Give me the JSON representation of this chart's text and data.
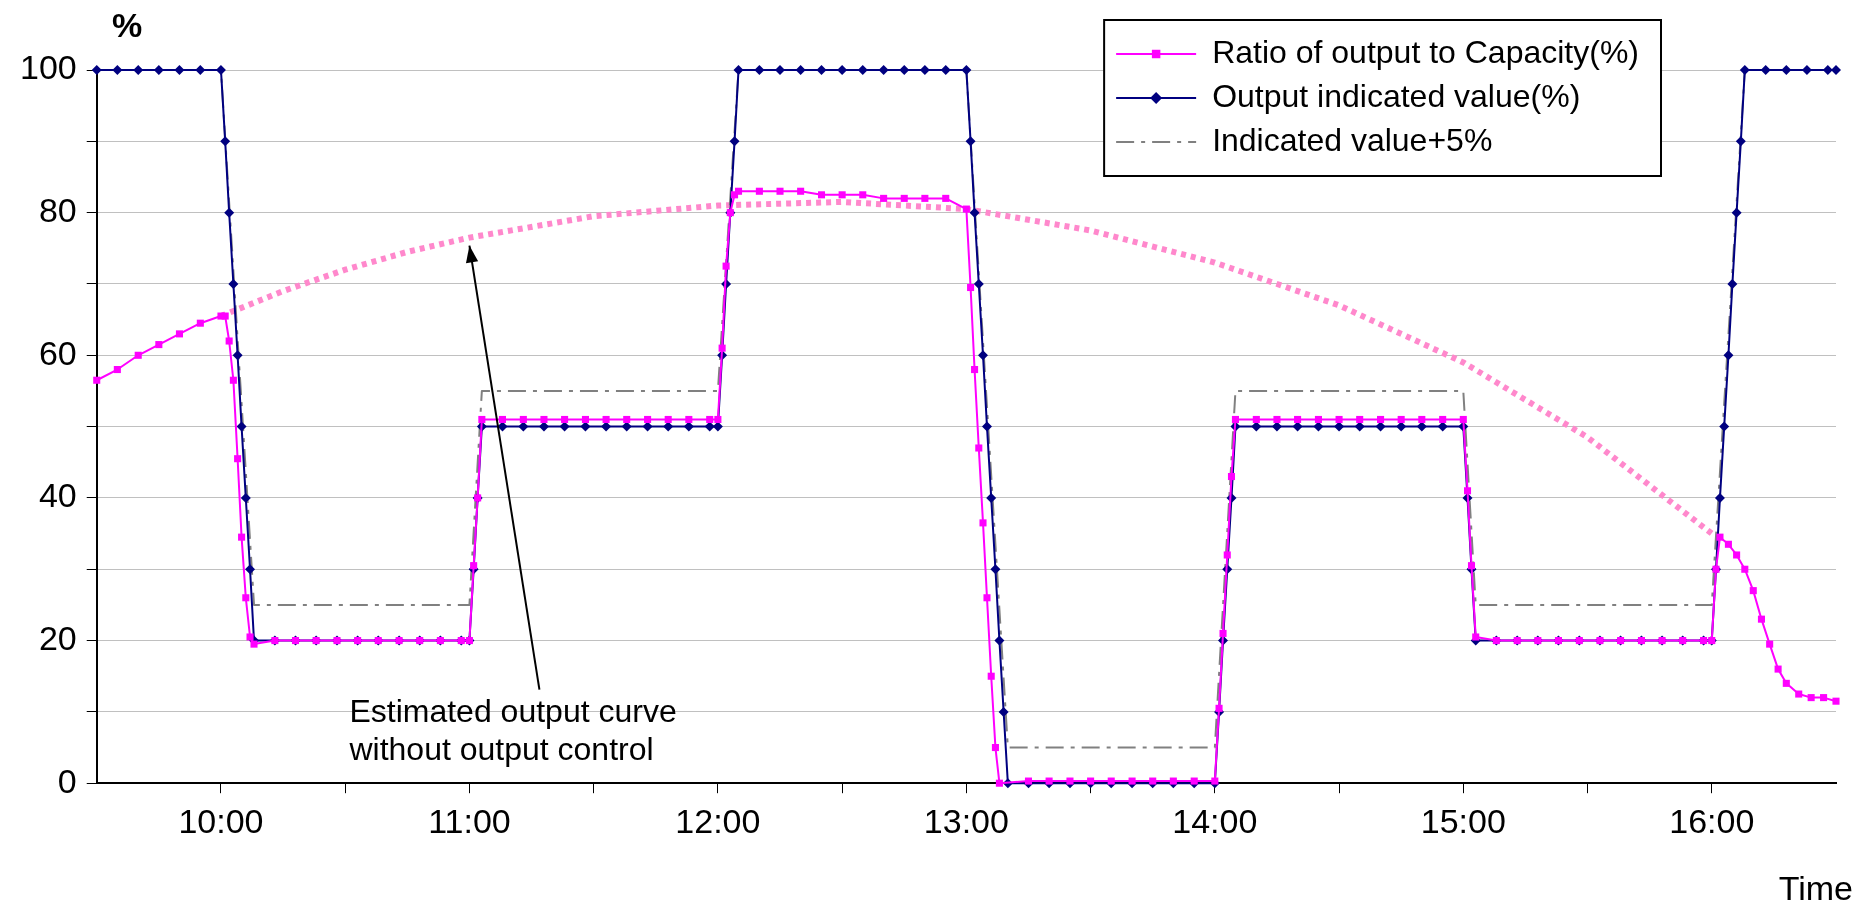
{
  "chart_data": {
    "type": "line",
    "xlabel": "Time",
    "ylabel": "%",
    "xlim": [
      9.5,
      16.5
    ],
    "xticks": [
      {
        "value": 10,
        "label": "10:00"
      },
      {
        "value": 10.5,
        "label": null
      },
      {
        "value": 11,
        "label": "11:00"
      },
      {
        "value": 11.5,
        "label": null
      },
      {
        "value": 12,
        "label": "12:00"
      },
      {
        "value": 12.5,
        "label": null
      },
      {
        "value": 13,
        "label": "13:00"
      },
      {
        "value": 13.5,
        "label": null
      },
      {
        "value": 14,
        "label": "14:00"
      },
      {
        "value": 14.5,
        "label": null
      },
      {
        "value": 15,
        "label": "15:00"
      },
      {
        "value": 15.5,
        "label": null
      },
      {
        "value": 16,
        "label": "16:00"
      }
    ],
    "ylim": [
      0,
      100
    ],
    "yticks": [
      0,
      {
        "value": 10,
        "label": null
      },
      20,
      {
        "value": 30,
        "label": null
      },
      40,
      {
        "value": 50,
        "label": null
      },
      60,
      {
        "value": 70,
        "label": null
      },
      80,
      {
        "value": 90,
        "label": null
      },
      100
    ],
    "grid": "y",
    "legend": "top right",
    "annotations": [
      {
        "text": "Estimated output curve\nwithout output control",
        "x": 11.0,
        "y": 76.5
      }
    ],
    "series": [
      {
        "name": "Ratio of output to Capacity(%)",
        "color": "#ff00ff",
        "marker": "square",
        "line_style": "solid",
        "x": [
          9.5,
          9.583,
          9.667,
          9.75,
          9.833,
          9.917,
          10,
          10.017,
          10.033,
          10.05,
          10.067,
          10.083,
          10.1,
          10.117,
          10.133,
          10.217,
          10.3,
          10.383,
          10.467,
          10.55,
          10.633,
          10.717,
          10.8,
          10.883,
          10.967,
          11.0,
          11.017,
          11.033,
          11.05,
          11.133,
          11.217,
          11.3,
          11.383,
          11.467,
          11.55,
          11.633,
          11.717,
          11.8,
          11.883,
          11.967,
          12.0,
          12.017,
          12.033,
          12.05,
          12.067,
          12.083,
          12.167,
          12.25,
          12.333,
          12.417,
          12.5,
          12.583,
          12.667,
          12.75,
          12.833,
          12.917,
          13.0,
          13.017,
          13.033,
          13.05,
          13.067,
          13.083,
          13.1,
          13.117,
          13.133,
          13.25,
          13.333,
          13.417,
          13.5,
          13.583,
          13.667,
          13.75,
          13.833,
          13.917,
          14.0,
          14.017,
          14.033,
          14.05,
          14.067,
          14.083,
          14.167,
          14.25,
          14.333,
          14.417,
          14.5,
          14.583,
          14.667,
          14.75,
          14.833,
          14.917,
          15.0,
          15.017,
          15.033,
          15.05,
          15.133,
          15.217,
          15.3,
          15.383,
          15.467,
          15.55,
          15.633,
          15.717,
          15.8,
          15.883,
          15.967,
          16.0,
          16.017,
          16.033,
          16.067,
          16.1,
          16.133,
          16.167,
          16.2,
          16.233,
          16.267,
          16.3,
          16.35,
          16.4,
          16.45,
          16.5
        ],
        "values": [
          56.5,
          58,
          60,
          61.5,
          63,
          64.5,
          65.5,
          65.5,
          62,
          56.5,
          45.5,
          34.5,
          26,
          20.5,
          19.5,
          20,
          20,
          20,
          20,
          20,
          20,
          20,
          20,
          20,
          20,
          20,
          30.5,
          40,
          51,
          51,
          51,
          51,
          51,
          51,
          51,
          51,
          51,
          51,
          51,
          51,
          51,
          61,
          72.5,
          80,
          82.5,
          83,
          83,
          83,
          83,
          82.5,
          82.5,
          82.5,
          82,
          82,
          82,
          82,
          80.5,
          69.5,
          58,
          47,
          36.5,
          26,
          15,
          5,
          0,
          0.3,
          0.3,
          0.3,
          0.3,
          0.3,
          0.3,
          0.3,
          0.3,
          0.3,
          0.3,
          10.5,
          21,
          32,
          43,
          51,
          51,
          51,
          51,
          51,
          51,
          51,
          51,
          51,
          51,
          51,
          51,
          41,
          30.5,
          20.5,
          20,
          20,
          20,
          20,
          20,
          20,
          20,
          20,
          20,
          20,
          20,
          20,
          30,
          34.5,
          33.5,
          32,
          30,
          27,
          23,
          19.5,
          16,
          14,
          12.5,
          12,
          12,
          11.5
        ]
      },
      {
        "name": "Output indicated value(%)",
        "color": "#000080",
        "marker": "diamond",
        "line_style": "solid",
        "x": [
          9.5,
          9.583,
          9.667,
          9.75,
          9.833,
          9.917,
          10,
          10.017,
          10.033,
          10.05,
          10.067,
          10.083,
          10.1,
          10.117,
          10.133,
          10.217,
          10.3,
          10.383,
          10.467,
          10.55,
          10.633,
          10.717,
          10.8,
          10.883,
          10.967,
          11.0,
          11.017,
          11.033,
          11.05,
          11.133,
          11.217,
          11.3,
          11.383,
          11.467,
          11.55,
          11.633,
          11.717,
          11.8,
          11.883,
          11.967,
          12.0,
          12.017,
          12.033,
          12.05,
          12.067,
          12.083,
          12.167,
          12.25,
          12.333,
          12.417,
          12.5,
          12.583,
          12.667,
          12.75,
          12.833,
          12.917,
          13.0,
          13.017,
          13.033,
          13.05,
          13.067,
          13.083,
          13.1,
          13.117,
          13.133,
          13.15,
          13.167,
          13.25,
          13.333,
          13.417,
          13.5,
          13.583,
          13.667,
          13.75,
          13.833,
          13.917,
          14.0,
          14.017,
          14.033,
          14.05,
          14.067,
          14.083,
          14.167,
          14.25,
          14.333,
          14.417,
          14.5,
          14.583,
          14.667,
          14.75,
          14.833,
          14.917,
          15.0,
          15.017,
          15.033,
          15.05,
          15.133,
          15.217,
          15.3,
          15.383,
          15.467,
          15.55,
          15.633,
          15.717,
          15.8,
          15.883,
          15.967,
          16.0,
          16.017,
          16.033,
          16.05,
          16.067,
          16.083,
          16.1,
          16.117,
          16.133,
          16.217,
          16.3,
          16.383,
          16.467,
          16.5
        ],
        "values": [
          100,
          100,
          100,
          100,
          100,
          100,
          100,
          90,
          80,
          70,
          60,
          50,
          40,
          30,
          20,
          20,
          20,
          20,
          20,
          20,
          20,
          20,
          20,
          20,
          20,
          20,
          30,
          40,
          50,
          50,
          50,
          50,
          50,
          50,
          50,
          50,
          50,
          50,
          50,
          50,
          50,
          60,
          70,
          80,
          90,
          100,
          100,
          100,
          100,
          100,
          100,
          100,
          100,
          100,
          100,
          100,
          100,
          90,
          80,
          70,
          60,
          50,
          40,
          30,
          20,
          10,
          0,
          0,
          0,
          0,
          0,
          0,
          0,
          0,
          0,
          0,
          0,
          10,
          20,
          30,
          40,
          50,
          50,
          50,
          50,
          50,
          50,
          50,
          50,
          50,
          50,
          50,
          50,
          40,
          30,
          20,
          20,
          20,
          20,
          20,
          20,
          20,
          20,
          20,
          20,
          20,
          20,
          20,
          30,
          40,
          50,
          60,
          70,
          80,
          90,
          100,
          100,
          100,
          100,
          100,
          100
        ]
      },
      {
        "name": "Indicated value+5%",
        "color": "#808080",
        "marker": "none",
        "line_style": "dashed",
        "x": [
          9.5,
          10,
          10.133,
          11,
          11.05,
          12,
          12.083,
          13,
          13.167,
          14,
          14.083,
          15,
          15.05,
          16,
          16.133,
          16.5
        ],
        "values": [
          100,
          100,
          25,
          25,
          55,
          55,
          100,
          100,
          5,
          5,
          55,
          55,
          25,
          25,
          100,
          100
        ]
      },
      {
        "color": "#ff88cc",
        "marker": "none",
        "line_style": "dotted",
        "x": [
          10,
          10.25,
          10.5,
          10.75,
          11,
          11.5,
          12,
          12.5,
          13,
          13.5,
          14,
          14.5,
          15,
          15.5,
          16
        ],
        "values": [
          65.5,
          69,
          72,
          74.5,
          76.5,
          79.5,
          81,
          81.5,
          80.5,
          77.5,
          73,
          67,
          59,
          48.5,
          35
        ]
      }
    ]
  }
}
